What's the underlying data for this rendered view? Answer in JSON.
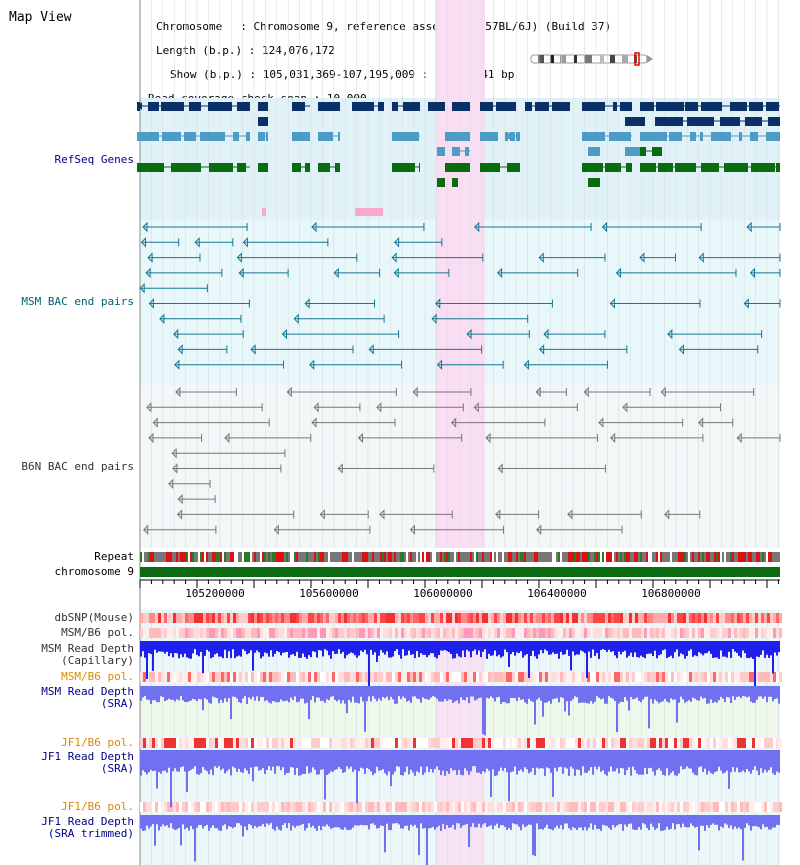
{
  "view_title": "Map View",
  "header": {
    "chromosome_key": "Chromosome",
    "chromosome_value": "Chromosome 9, reference assembly (C57BL/6J) (Build 37)",
    "length_key": "Length (b.p.)",
    "length_value": "124,076,172",
    "show_key": "Show (b.p.)",
    "show_value": "105,031,369-107,195,009 : 2,163,641 bp",
    "coverage_key": "Read coverage check span",
    "coverage_value": "10,000"
  },
  "track_labels": {
    "refseq": "RefSeq Genes",
    "msm_bac": "MSM BAC end pairs",
    "b6n_bac": "B6N BAC end pairs",
    "repeat": "Repeat",
    "chromosome": "chromosome 9",
    "dbsnp": "dbSNP(Mouse)",
    "msm_pol": "MSM/B6 pol.",
    "msm_depth_cap_1": "MSM Read Depth",
    "msm_depth_cap_2": "(Capillary)",
    "msm_pol2": "MSM/B6 pol.",
    "msm_depth_sra_1": "MSM Read Depth",
    "msm_depth_sra_2": "(SRA)",
    "jf1_pol": "JF1/B6 pol.",
    "jf1_depth_1": "JF1 Read Depth",
    "jf1_depth_2": "(SRA)",
    "jf1_pol2": "JF1/B6 pol.",
    "jf1_trim_1": "JF1 Read Depth",
    "jf1_trim_2": "(SRA trimmed)"
  },
  "axis": {
    "ticks": [
      "105200000",
      "105600000",
      "106000000",
      "106400000",
      "106800000"
    ]
  },
  "colors": {
    "refseq_bg": "#e0f2f8",
    "msm_bac_bg": "#e8f7f9",
    "b6n_bac_bg": "#f4f7f8",
    "highlight": "#f9ddf2",
    "gene_dark": "#0b3068",
    "gene_mid": "#4c9cc6",
    "gene_green": "#0a6b10",
    "bac_msm": "#157595",
    "bac_b6n": "#777777",
    "chromosome_bar": "#0a6b10",
    "depth_msm": "#2020ee",
    "depth_sra": "#7070f0",
    "label_orange": "#d98a00",
    "label_navy": "#000088",
    "label_teal": "#006070",
    "label_grey": "#333333"
  }
}
